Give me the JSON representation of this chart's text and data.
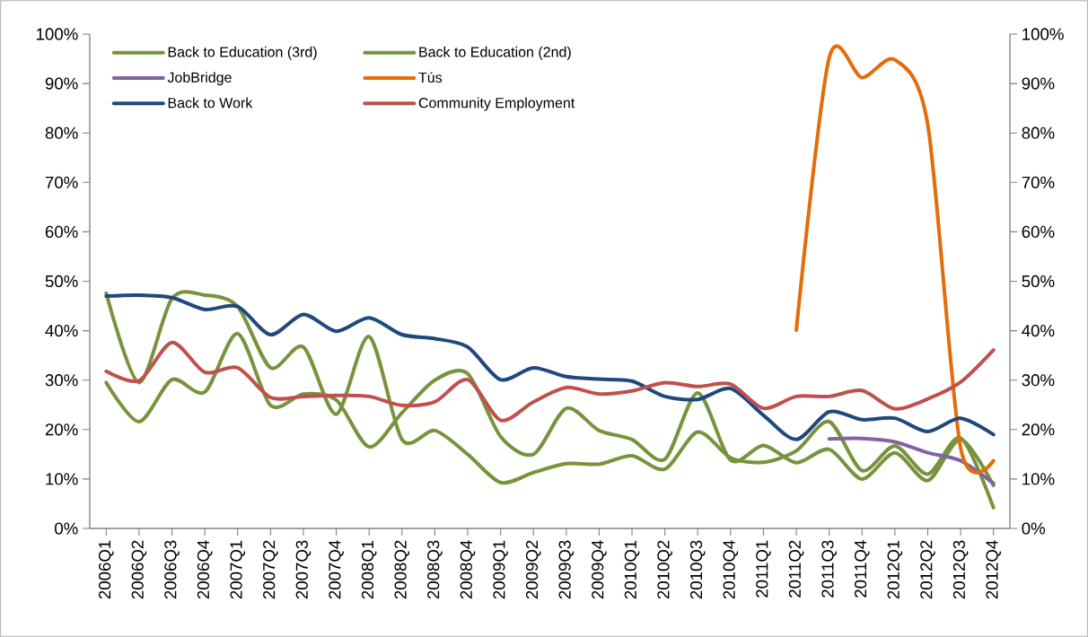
{
  "chart_data": {
    "type": "line",
    "categories": [
      "2006Q1",
      "2006Q2",
      "2006Q3",
      "2006Q4",
      "2007Q1",
      "2007Q2",
      "2007Q3",
      "2007Q4",
      "2008Q1",
      "2008Q2",
      "2008Q3",
      "2008Q4",
      "2009Q1",
      "2009Q2",
      "2009Q3",
      "2009Q4",
      "2010Q1",
      "2010Q2",
      "2010Q3",
      "2010Q4",
      "2011Q1",
      "2011Q2",
      "2011Q3",
      "2011Q4",
      "2012Q1",
      "2012Q2",
      "2012Q3",
      "2012Q4"
    ],
    "series": [
      {
        "name": "Back to Education (3rd)",
        "color": "#77933c",
        "values": [
          47.6,
          29.5,
          46.5,
          47.2,
          44.9,
          32.5,
          36.7,
          23.1,
          38.8,
          18,
          19.8,
          15,
          9.3,
          11.3,
          13.1,
          13,
          14.7,
          12,
          19.5,
          14.3,
          13.4,
          15.7,
          21.6,
          11.7,
          16.7,
          11,
          18.3,
          4.2
        ]
      },
      {
        "name": "Back to Education (2nd)",
        "color": "#77933c",
        "values": [
          29.5,
          21.6,
          30.1,
          27.6,
          39.4,
          24.9,
          27.2,
          26,
          16.5,
          23.4,
          30,
          31.3,
          18.6,
          15,
          24.3,
          19.8,
          18,
          14,
          27.4,
          13.8,
          16.8,
          13.3,
          16,
          10,
          15.3,
          9.7,
          18,
          8.7
        ]
      },
      {
        "name": "JobBridge",
        "color": "#8064a2",
        "values": [
          null,
          null,
          null,
          null,
          null,
          null,
          null,
          null,
          null,
          null,
          null,
          null,
          null,
          null,
          null,
          null,
          null,
          null,
          null,
          null,
          null,
          null,
          18.1,
          18.2,
          17.5,
          15.3,
          13.7,
          9.1
        ]
      },
      {
        "name": "Tús",
        "color": "#e46c0a",
        "values": [
          null,
          null,
          null,
          null,
          null,
          null,
          null,
          null,
          null,
          null,
          null,
          null,
          null,
          null,
          null,
          null,
          null,
          null,
          null,
          null,
          null,
          40.1,
          95.2,
          91.2,
          94.8,
          81.7,
          16.3,
          13.7
        ]
      },
      {
        "name": "Back to Work",
        "color": "#1f497d",
        "values": [
          47,
          47.2,
          46.7,
          44.3,
          44.9,
          39.2,
          43.3,
          39.9,
          42.6,
          39.2,
          38.4,
          36.7,
          30.1,
          32.5,
          30.7,
          30.2,
          29.8,
          26.7,
          26.1,
          28.3,
          22.9,
          18,
          23.6,
          22,
          22.3,
          19.6,
          22.3,
          19
        ]
      },
      {
        "name": "Community Employment",
        "color": "#c0504d",
        "values": [
          31.8,
          29.9,
          37.6,
          31.6,
          32.5,
          26.5,
          26.7,
          26.9,
          26.7,
          24.9,
          25.6,
          30.1,
          21.9,
          25.6,
          28.5,
          27.2,
          27.8,
          29.5,
          28.7,
          29.2,
          24.3,
          26.7,
          26.7,
          27.9,
          24.2,
          26.2,
          29.6,
          36.1
        ]
      }
    ],
    "ylim": [
      0,
      100
    ],
    "yticks": [
      {
        "value": 0,
        "label": "0%"
      },
      {
        "value": 10,
        "label": "10%"
      },
      {
        "value": 20,
        "label": "20%"
      },
      {
        "value": 30,
        "label": "30%"
      },
      {
        "value": 40,
        "label": "40%"
      },
      {
        "value": 50,
        "label": "50%"
      },
      {
        "value": 60,
        "label": "60%"
      },
      {
        "value": 70,
        "label": "70%"
      },
      {
        "value": 80,
        "label": "80%"
      },
      {
        "value": 90,
        "label": "90%"
      },
      {
        "value": 100,
        "label": "100%"
      }
    ],
    "y2lim": [
      0,
      100
    ],
    "y2ticks": [
      {
        "value": 0,
        "label": "0%"
      },
      {
        "value": 10,
        "label": "10%"
      },
      {
        "value": 20,
        "label": "20%"
      },
      {
        "value": 30,
        "label": "30%"
      },
      {
        "value": 40,
        "label": "40%"
      },
      {
        "value": 50,
        "label": "50%"
      },
      {
        "value": 60,
        "label": "60%"
      },
      {
        "value": 70,
        "label": "70%"
      },
      {
        "value": 80,
        "label": "80%"
      },
      {
        "value": 90,
        "label": "90%"
      },
      {
        "value": 100,
        "label": "100%"
      }
    ],
    "legend": "top left",
    "grid": false,
    "marker": "none",
    "line_style": "solid"
  }
}
